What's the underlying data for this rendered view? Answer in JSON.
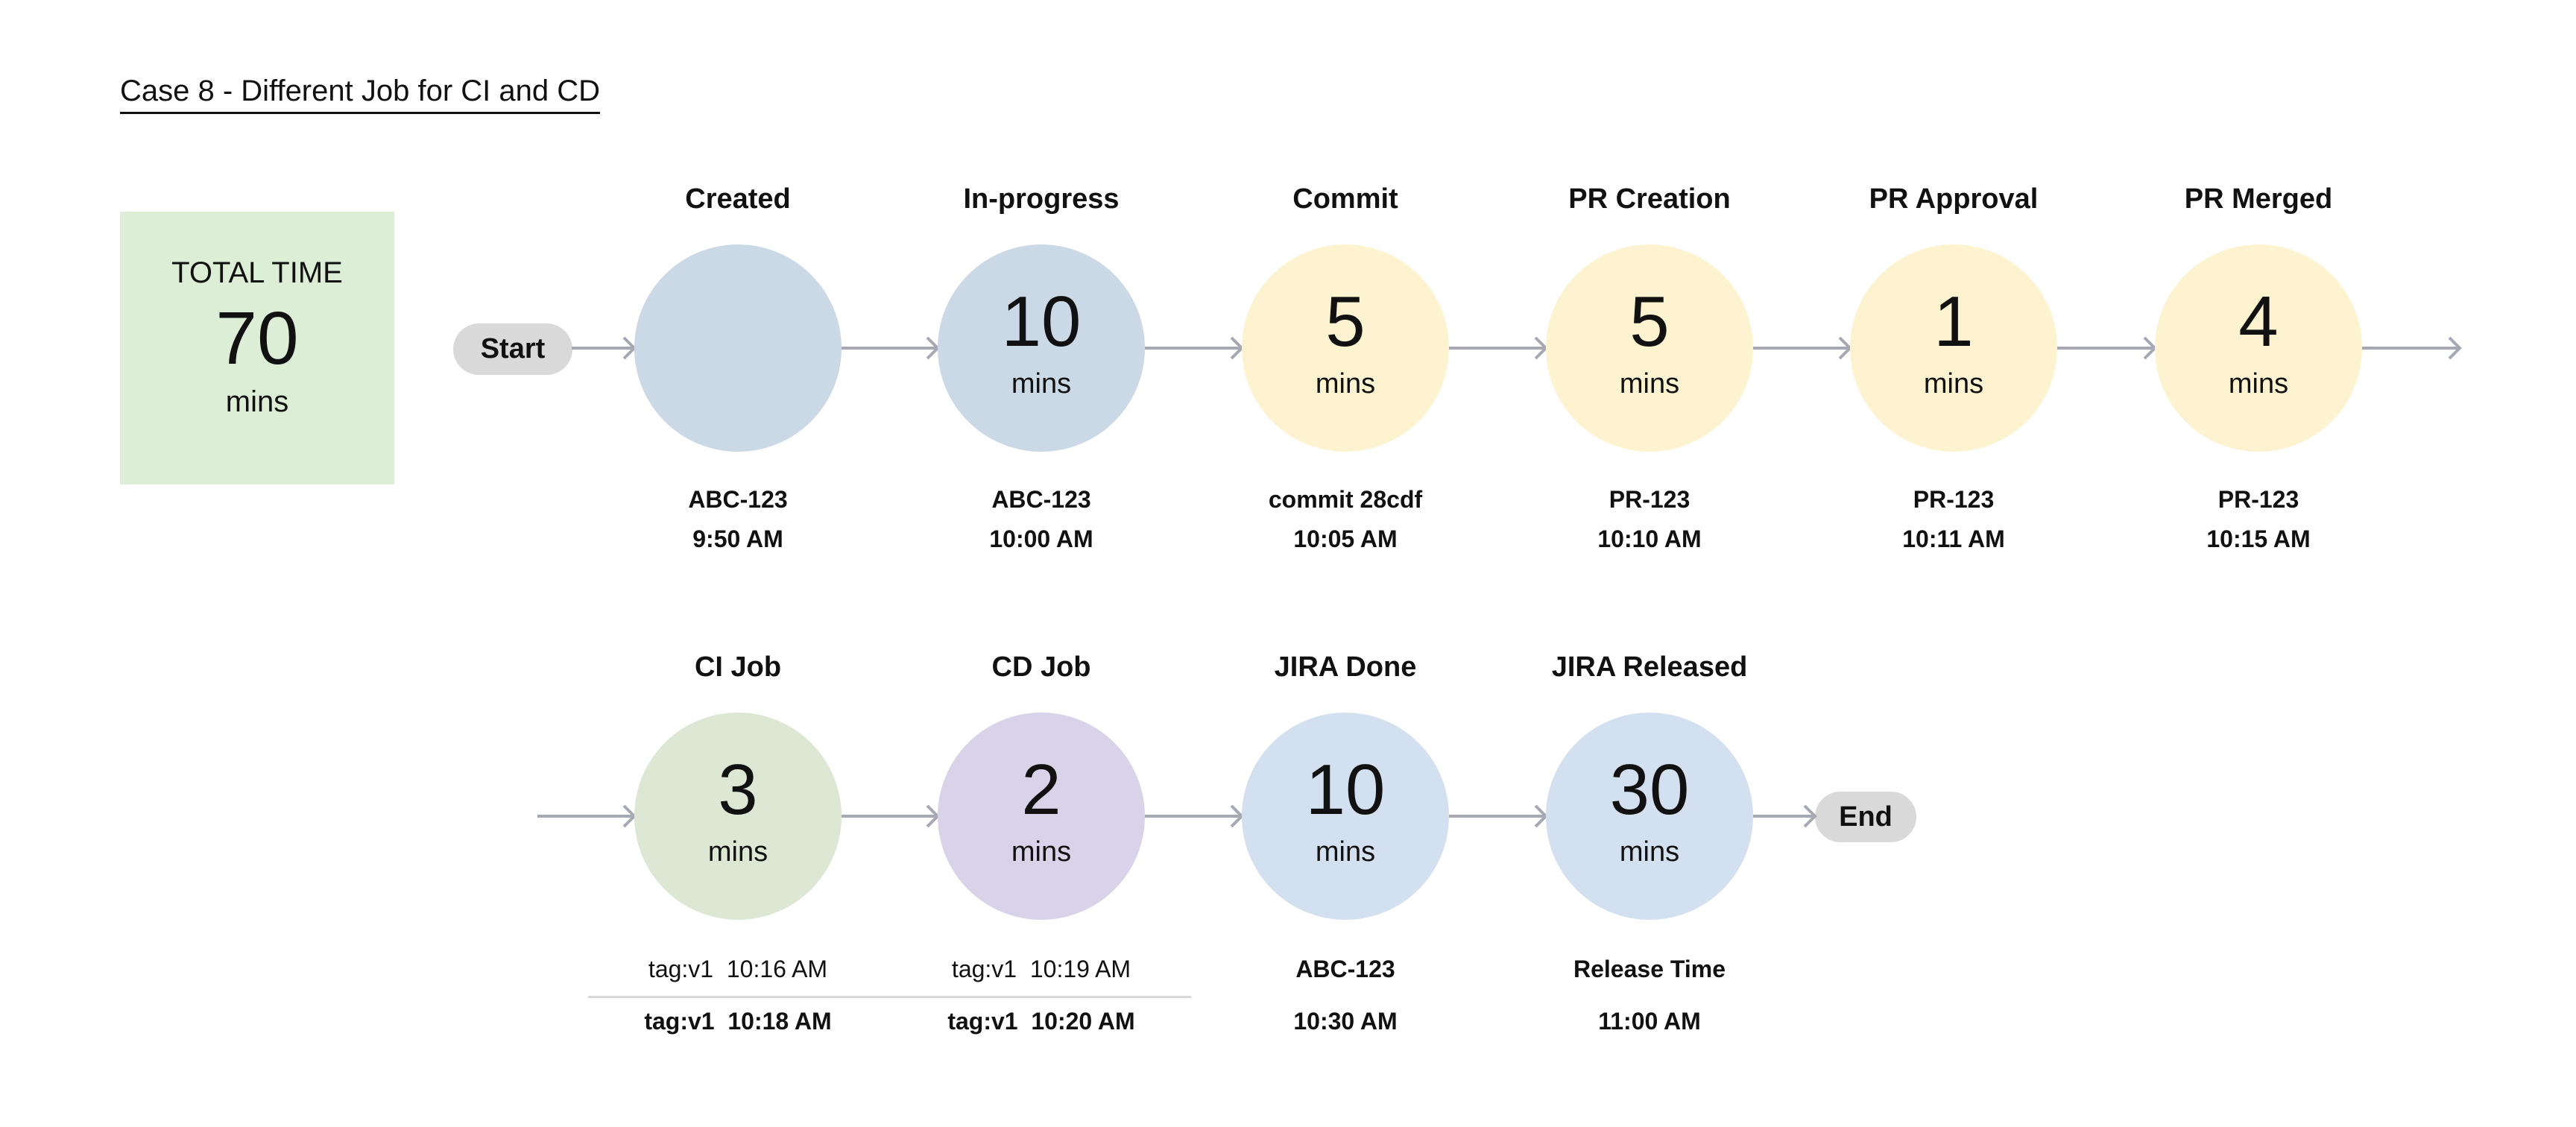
{
  "title": "Case 8 - Different Job for CI and CD",
  "total": {
    "label": "TOTAL TIME",
    "value": "70",
    "unit": "mins"
  },
  "start_label": "Start",
  "end_label": "End",
  "colors": {
    "blue": "#cbd9e6",
    "yellow": "#fdf3d0",
    "green": "#dce8d4",
    "purple": "#d8d3e8",
    "light_blue": "#d3e0ef",
    "total_bg": "#dcefd6",
    "pill": "#d9d9d9",
    "arrow": "#a6a8b4"
  },
  "row1": [
    {
      "title": "Created",
      "value": "",
      "unit": "",
      "line1": "ABC-123",
      "line2": "9:50 AM",
      "color": "#cbd9e6"
    },
    {
      "title": "In-progress",
      "value": "10",
      "unit": "mins",
      "line1": "ABC-123",
      "line2": "10:00 AM",
      "color": "#cbd9e6"
    },
    {
      "title": "Commit",
      "value": "5",
      "unit": "mins",
      "line1": "commit 28cdf",
      "line2": "10:05 AM",
      "color": "#fdf3d0"
    },
    {
      "title": "PR Creation",
      "value": "5",
      "unit": "mins",
      "line1": "PR-123",
      "line2": "10:10 AM",
      "color": "#fdf3d0"
    },
    {
      "title": "PR Approval",
      "value": "1",
      "unit": "mins",
      "line1": "PR-123",
      "line2": "10:11 AM",
      "color": "#fdf3d0"
    },
    {
      "title": "PR Merged",
      "value": "4",
      "unit": "mins",
      "line1": "PR-123",
      "line2": "10:15 AM",
      "color": "#fdf3d0"
    }
  ],
  "row2": [
    {
      "title": "CI Job",
      "value": "3",
      "unit": "mins",
      "line1": "tag:v1  10:16 AM",
      "line2": "tag:v1  10:18 AM",
      "color": "#dce8d4"
    },
    {
      "title": "CD Job",
      "value": "2",
      "unit": "mins",
      "line1": "tag:v1  10:19 AM",
      "line2": "tag:v1  10:20 AM",
      "color": "#d8d3e8"
    },
    {
      "title": "JIRA Done",
      "value": "10",
      "unit": "mins",
      "line1": "ABC-123",
      "line2": "10:30 AM",
      "color": "#d3e0ef"
    },
    {
      "title": "JIRA Released",
      "value": "30",
      "unit": "mins",
      "line1": "Release Time",
      "line2": "11:00 AM",
      "color": "#d3e0ef"
    }
  ]
}
